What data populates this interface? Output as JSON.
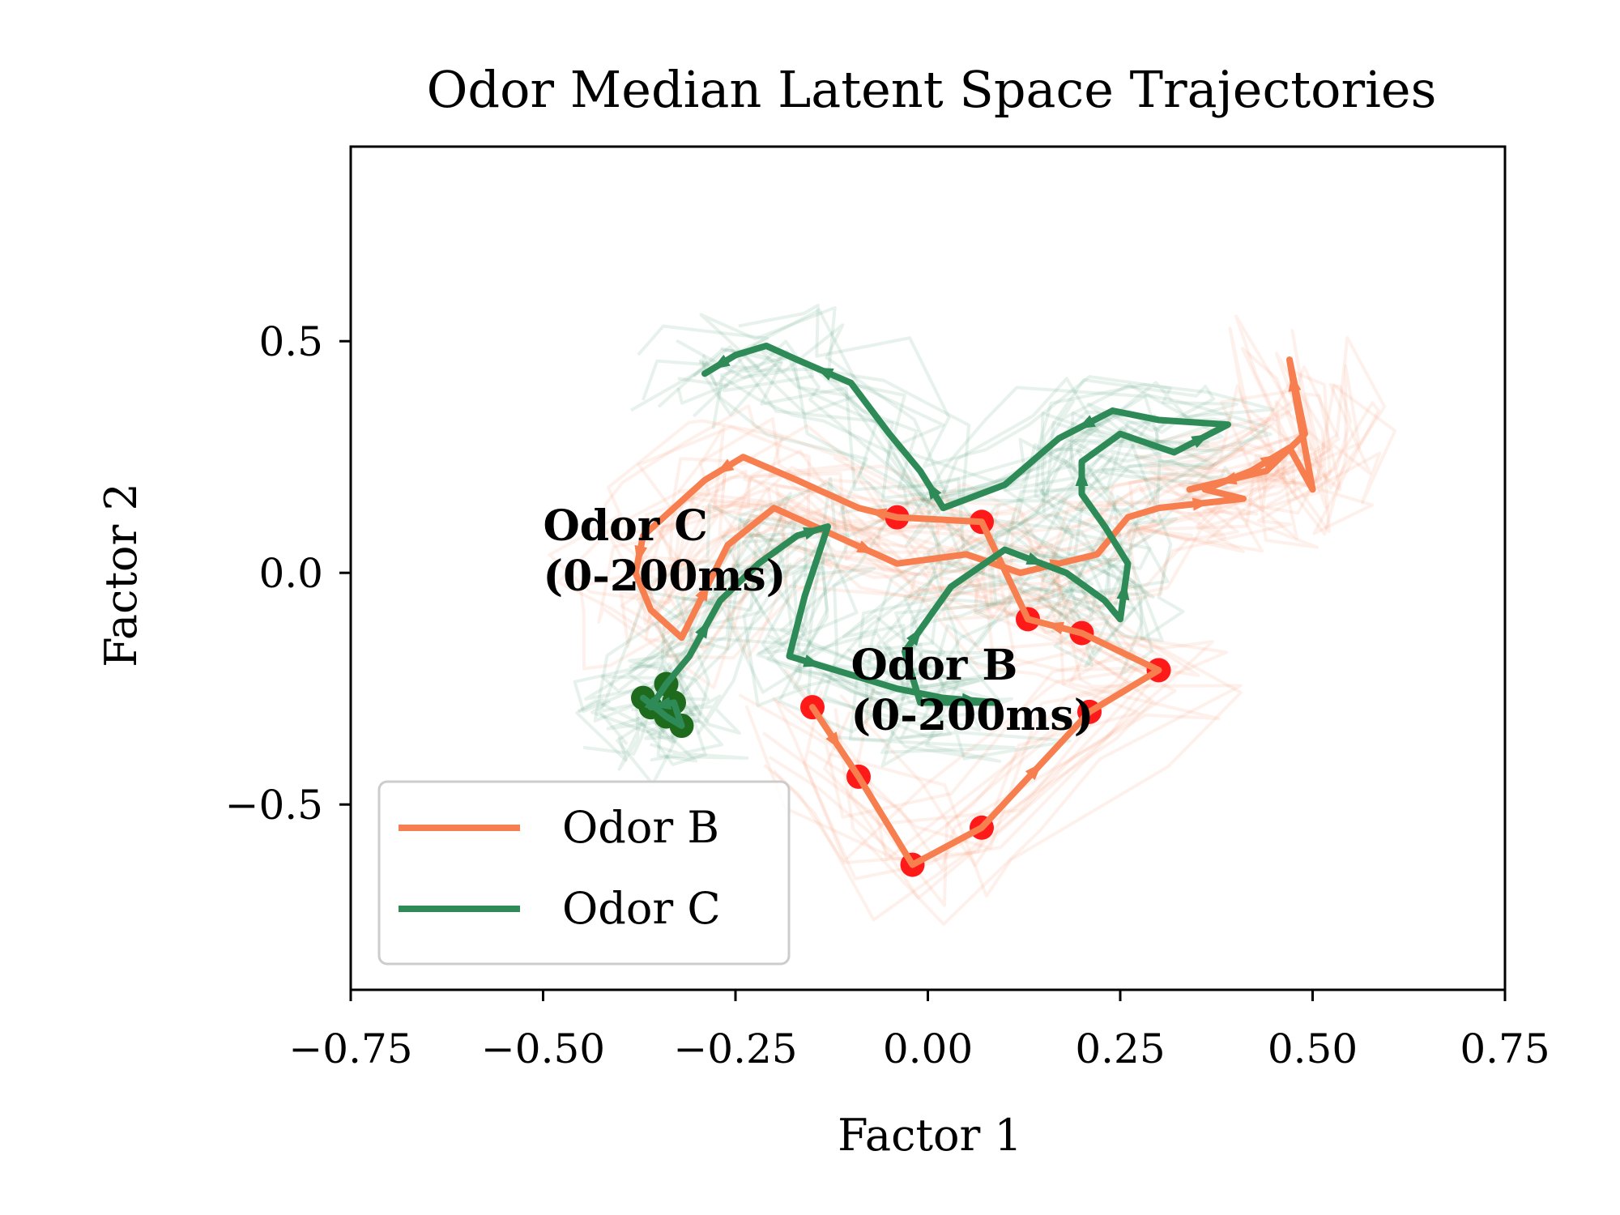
{
  "chart_data": {
    "type": "line",
    "title": "Odor Median Latent Space Trajectories",
    "xlabel": "Factor 1",
    "ylabel": "Factor 2",
    "xlim": [
      -0.75,
      0.75
    ],
    "ylim": [
      -0.9,
      0.92
    ],
    "x_ticks": [
      -0.75,
      -0.5,
      -0.25,
      0.0,
      0.25,
      0.5,
      0.75
    ],
    "x_tick_labels": [
      "−0.75",
      "−0.50",
      "−0.25",
      "0.00",
      "0.25",
      "0.50",
      "0.75"
    ],
    "y_ticks": [
      0.5,
      0.0,
      -0.5
    ],
    "y_tick_labels": [
      "0.5",
      "0.0",
      "−0.5"
    ],
    "grid": false,
    "legend": {
      "position": "lower-left",
      "entries": [
        "Odor B",
        "Odor C"
      ]
    },
    "annotations": [
      {
        "lines": [
          "Odor C",
          "(0-200ms)"
        ],
        "x": -0.5,
        "y": 0.07
      },
      {
        "lines": [
          "Odor B",
          "(0-200ms)"
        ],
        "x": -0.1,
        "y": -0.23
      }
    ],
    "colors": {
      "odor_b": "#f77f4f",
      "odor_b_marker": "#ff1a1a",
      "odor_c": "#2e8b57",
      "odor_c_marker": "#1e6b1e"
    },
    "series": [
      {
        "name": "Odor B",
        "color": "#f77f4f",
        "points": [
          [
            -0.15,
            -0.29
          ],
          [
            -0.09,
            -0.44
          ],
          [
            -0.02,
            -0.63
          ],
          [
            0.07,
            -0.55
          ],
          [
            0.21,
            -0.3
          ],
          [
            0.3,
            -0.21
          ],
          [
            0.2,
            -0.13
          ],
          [
            0.13,
            -0.1
          ],
          [
            0.07,
            0.11
          ],
          [
            -0.04,
            0.12
          ],
          [
            -0.09,
            0.14
          ],
          [
            -0.17,
            0.2
          ],
          [
            -0.24,
            0.25
          ],
          [
            -0.29,
            0.2
          ],
          [
            -0.33,
            0.14
          ],
          [
            -0.37,
            0.08
          ],
          [
            -0.38,
            0.0
          ],
          [
            -0.36,
            -0.08
          ],
          [
            -0.32,
            -0.14
          ],
          [
            -0.26,
            0.06
          ],
          [
            -0.2,
            0.14
          ],
          [
            -0.12,
            0.08
          ],
          [
            -0.04,
            0.02
          ],
          [
            0.05,
            0.04
          ],
          [
            0.12,
            0.0
          ],
          [
            0.22,
            0.04
          ],
          [
            0.26,
            0.12
          ],
          [
            0.3,
            0.14
          ],
          [
            0.41,
            0.16
          ],
          [
            0.36,
            0.18
          ],
          [
            0.42,
            0.22
          ],
          [
            0.47,
            0.27
          ],
          [
            0.5,
            0.18
          ],
          [
            0.48,
            0.36
          ],
          [
            0.47,
            0.46
          ],
          [
            0.49,
            0.3
          ],
          [
            0.44,
            0.22
          ],
          [
            0.34,
            0.18
          ]
        ],
        "marked_points": [
          [
            -0.15,
            -0.29
          ],
          [
            -0.09,
            -0.44
          ],
          [
            -0.02,
            -0.63
          ],
          [
            0.07,
            -0.55
          ],
          [
            0.21,
            -0.3
          ],
          [
            0.3,
            -0.21
          ],
          [
            0.2,
            -0.13
          ],
          [
            0.13,
            -0.1
          ],
          [
            0.07,
            0.11
          ],
          [
            -0.04,
            0.12
          ]
        ]
      },
      {
        "name": "Odor C",
        "color": "#2e8b57",
        "points": [
          [
            -0.37,
            -0.27
          ],
          [
            -0.34,
            -0.31
          ],
          [
            -0.32,
            -0.33
          ],
          [
            -0.33,
            -0.28
          ],
          [
            -0.36,
            -0.29
          ],
          [
            -0.34,
            -0.24
          ],
          [
            -0.31,
            -0.18
          ],
          [
            -0.27,
            -0.06
          ],
          [
            -0.22,
            0.02
          ],
          [
            -0.17,
            0.08
          ],
          [
            -0.13,
            0.1
          ],
          [
            -0.16,
            -0.05
          ],
          [
            -0.18,
            -0.18
          ],
          [
            -0.12,
            -0.21
          ],
          [
            -0.04,
            -0.25
          ],
          [
            0.02,
            -0.27
          ],
          [
            0.09,
            -0.28
          ],
          [
            -0.01,
            -0.28
          ],
          [
            -0.03,
            -0.17
          ],
          [
            0.0,
            -0.1
          ],
          [
            0.03,
            -0.03
          ],
          [
            0.1,
            0.05
          ],
          [
            0.18,
            0.0
          ],
          [
            0.23,
            -0.06
          ],
          [
            0.25,
            -0.1
          ],
          [
            0.26,
            0.02
          ],
          [
            0.23,
            0.1
          ],
          [
            0.2,
            0.17
          ],
          [
            0.2,
            0.24
          ],
          [
            0.25,
            0.3
          ],
          [
            0.32,
            0.26
          ],
          [
            0.39,
            0.32
          ],
          [
            0.3,
            0.33
          ],
          [
            0.24,
            0.35
          ],
          [
            0.17,
            0.29
          ],
          [
            0.1,
            0.19
          ],
          [
            0.02,
            0.14
          ],
          [
            -0.01,
            0.22
          ],
          [
            -0.05,
            0.3
          ],
          [
            -0.1,
            0.41
          ],
          [
            -0.17,
            0.46
          ],
          [
            -0.21,
            0.49
          ],
          [
            -0.25,
            0.47
          ],
          [
            -0.29,
            0.43
          ]
        ],
        "marked_points": [
          [
            -0.37,
            -0.27
          ],
          [
            -0.34,
            -0.31
          ],
          [
            -0.32,
            -0.33
          ],
          [
            -0.33,
            -0.28
          ],
          [
            -0.36,
            -0.29
          ],
          [
            -0.34,
            -0.24
          ]
        ]
      }
    ]
  }
}
